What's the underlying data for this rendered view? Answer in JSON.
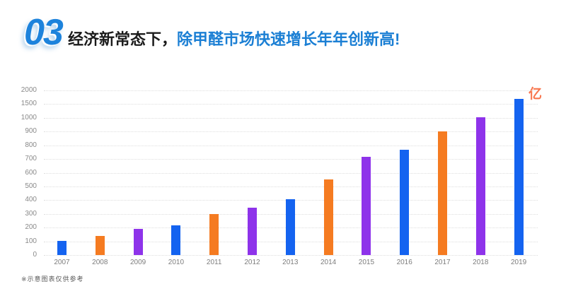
{
  "header": {
    "section_number": "03",
    "title_black": "经济新常态下，",
    "title_blue": "除甲醛市场快速增长年年创新高!"
  },
  "chart_data": {
    "type": "bar",
    "title": "",
    "unit_label": "亿",
    "categories": [
      "2007",
      "2008",
      "2009",
      "2010",
      "2011",
      "2012",
      "2013",
      "2014",
      "2015",
      "2016",
      "2017",
      "2018",
      "2019"
    ],
    "values": [
      105,
      140,
      190,
      215,
      300,
      345,
      405,
      550,
      715,
      770,
      900,
      1010,
      1700
    ],
    "y_ticks": [
      0,
      100,
      200,
      300,
      400,
      500,
      600,
      700,
      800,
      900,
      1000,
      1500,
      2000
    ],
    "axis_note": "ticks equally spaced (compressed scale above 1000)",
    "grid": "horizontal dotted",
    "legend": "none",
    "bar_color_cycle": [
      "#1463f0",
      "#f57b21",
      "#8e33ea"
    ],
    "xlabel": "",
    "ylabel": ""
  },
  "footnote": "※示意图表仅供参考",
  "colors": {
    "title_blue": "#1b7fd4",
    "section_number_blue": "#1d83dc",
    "unit_label_orange": "#f8764e",
    "axis_text_gray": "#8a8a8a",
    "gridline_gray": "#dedede"
  }
}
